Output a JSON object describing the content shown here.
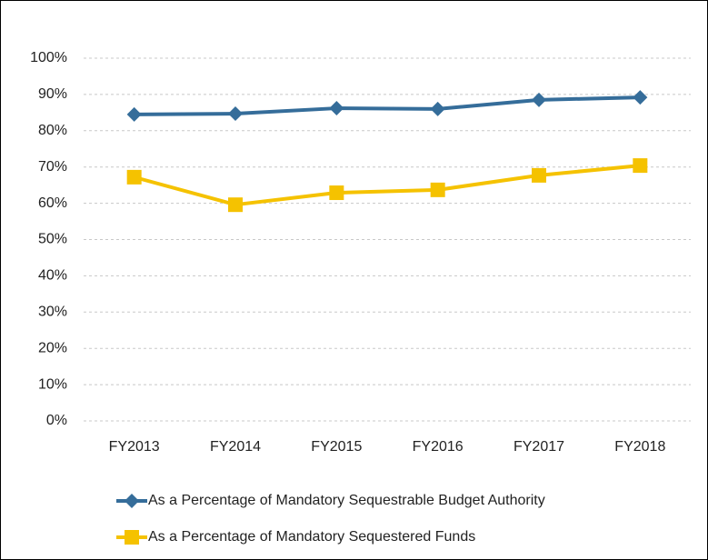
{
  "chart_data": {
    "type": "line",
    "categories": [
      "FY2013",
      "FY2014",
      "FY2015",
      "FY2016",
      "FY2017",
      "FY2018"
    ],
    "series": [
      {
        "name": "As a Percentage of Mandatory Sequestrable Budget Authority",
        "color": "#356d9a",
        "marker": "diamond",
        "values": [
          84.5,
          84.7,
          86.2,
          86.0,
          88.5,
          89.2
        ]
      },
      {
        "name": "As a Percentage of Mandatory Sequestered Funds",
        "color": "#f5c200",
        "marker": "square",
        "values": [
          67.2,
          59.6,
          62.9,
          63.7,
          67.7,
          70.4
        ]
      }
    ],
    "ylim": [
      0,
      100
    ],
    "yticks": [
      {
        "value": 0,
        "label": "0%"
      },
      {
        "value": 10,
        "label": "10%"
      },
      {
        "value": 20,
        "label": "20%"
      },
      {
        "value": 30,
        "label": "30%"
      },
      {
        "value": 40,
        "label": "40%"
      },
      {
        "value": 50,
        "label": "50%"
      },
      {
        "value": 60,
        "label": "60%"
      },
      {
        "value": 70,
        "label": "70%"
      },
      {
        "value": 80,
        "label": "80%"
      },
      {
        "value": 90,
        "label": "90%"
      },
      {
        "value": 100,
        "label": "100%"
      }
    ],
    "grid": true,
    "legend": "bottom"
  }
}
